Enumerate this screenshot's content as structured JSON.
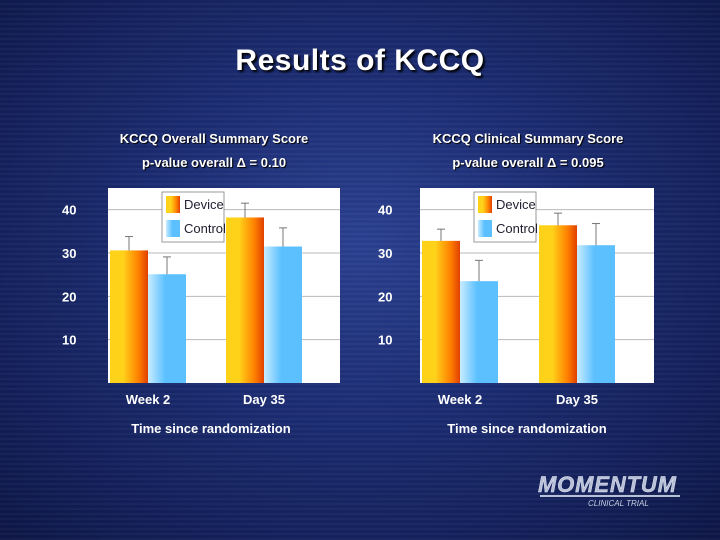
{
  "title": "Results of KCCQ",
  "colors": {
    "device_top": "#ffd21a",
    "device_mid": "#ff8000",
    "device_edge": "#e04000",
    "control_light": "#c8ecff",
    "control": "#5cc0ff",
    "plot_bg": "#ffffff",
    "grid": "#b8b8b8"
  },
  "chart_data": [
    {
      "type": "bar",
      "title": "KCCQ Overall Summary Score",
      "subtitle": "p-value overall  Δ = 0.10",
      "categories": [
        "Week 2",
        "Day 35"
      ],
      "series": [
        {
          "name": "Device",
          "values": [
            30.6,
            38.2
          ],
          "error": [
            3.2,
            3.3
          ]
        },
        {
          "name": "Control",
          "values": [
            25.1,
            31.5
          ],
          "error": [
            4.0,
            4.3
          ]
        }
      ],
      "xlabel": "Time since randomization",
      "ylabel": "",
      "ylim": [
        0,
        45
      ],
      "yticks": [
        10,
        20,
        30,
        40
      ],
      "legend": [
        "Device",
        "Control"
      ]
    },
    {
      "type": "bar",
      "title": "KCCQ Clinical Summary Score",
      "subtitle": "p-value overall  Δ = 0.095",
      "categories": [
        "Week 2",
        "Day 35"
      ],
      "series": [
        {
          "name": "Device",
          "values": [
            32.8,
            36.4
          ],
          "error": [
            2.7,
            2.8
          ]
        },
        {
          "name": "Control",
          "values": [
            23.5,
            31.8
          ],
          "error": [
            4.8,
            5.0
          ]
        }
      ],
      "xlabel": "Time since randomization",
      "ylabel": "",
      "ylim": [
        0,
        45
      ],
      "yticks": [
        10,
        20,
        30,
        40
      ],
      "legend": [
        "Device",
        "Control"
      ]
    }
  ],
  "logo": {
    "name": "MOMENTUM",
    "tagline": "CLINICAL TRIAL"
  }
}
